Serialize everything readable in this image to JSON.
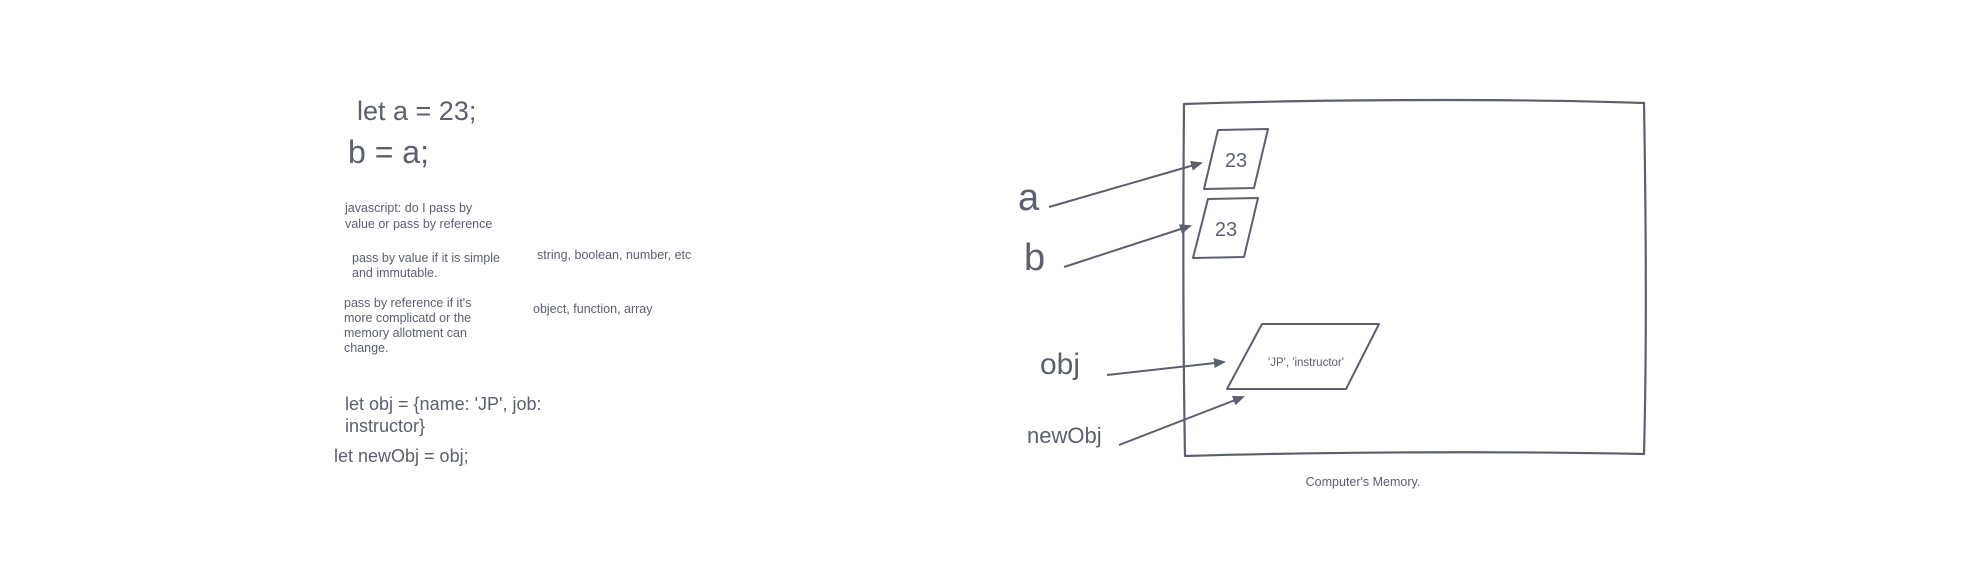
{
  "notes": {
    "let_a": "let a = 23;",
    "b_eq_a": "b = a;",
    "question": "javascript: do I pass by\nvalue or pass by reference",
    "by_value": "pass by value if it is simple\nand immutable.",
    "by_value_examples": "string, boolean, number, etc",
    "by_reference": "pass by reference if it's\nmore complicatd or the\nmemory allotment can\nchange.",
    "by_reference_examples": "object, function, array",
    "let_obj": "let obj = {name: 'JP', job:\ninstructor}",
    "let_newobj": "let newObj = obj;"
  },
  "diagram": {
    "memory_caption": "Computer's Memory.",
    "labels": {
      "a": "a",
      "b": "b",
      "obj": "obj",
      "newObj": "newObj"
    },
    "cells": {
      "a_value": "23",
      "b_value": "23",
      "obj_value": "'JP', 'instructor'"
    }
  },
  "colors": {
    "ink": "#5b6070",
    "background": "#ffffff"
  }
}
